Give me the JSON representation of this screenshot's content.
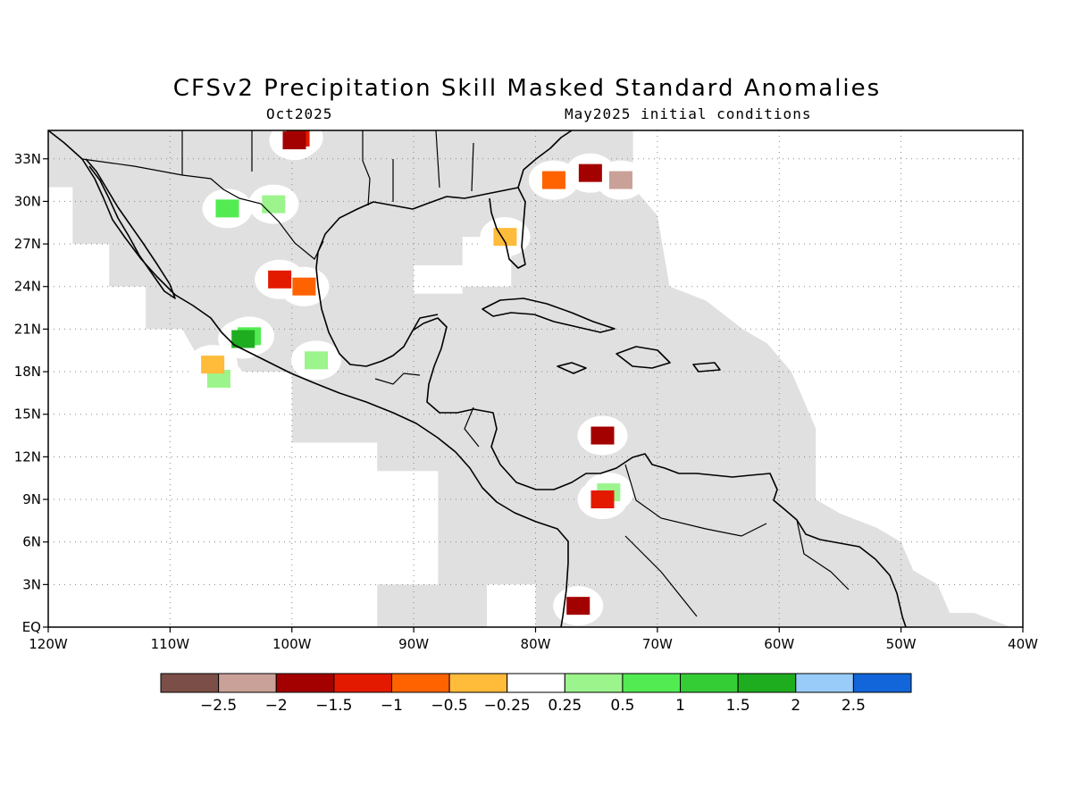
{
  "title": "CFSv2 Precipitation Skill Masked Standard Anomalies",
  "subtitle_left": "Oct2025",
  "subtitle_right": "May2025 initial conditions",
  "map": {
    "lon_range": [
      -120,
      -40
    ],
    "lat_range": [
      0,
      35
    ],
    "x_ticks": [
      "120W",
      "110W",
      "100W",
      "90W",
      "80W",
      "70W",
      "60W",
      "50W",
      "40W"
    ],
    "y_ticks": [
      "EQ",
      "3N",
      "6N",
      "9N",
      "12N",
      "15N",
      "18N",
      "21N",
      "24N",
      "27N",
      "30N",
      "33N"
    ],
    "grid": "dotted",
    "mask_color": "#e0e0e0",
    "anomaly_patches": [
      {
        "lon": -99.5,
        "lat": 34.5,
        "value": -1.0
      },
      {
        "lon": -99.8,
        "lat": 34.3,
        "value": -1.5
      },
      {
        "lon": -105.3,
        "lat": 29.5,
        "value": 1.0
      },
      {
        "lon": -101.5,
        "lat": 29.8,
        "value": 0.5
      },
      {
        "lon": -101.0,
        "lat": 24.5,
        "value": -1.0
      },
      {
        "lon": -99.0,
        "lat": 24.0,
        "value": -0.5
      },
      {
        "lon": -103.5,
        "lat": 20.5,
        "value": 1.0
      },
      {
        "lon": -104.0,
        "lat": 20.3,
        "value": 2.0
      },
      {
        "lon": -98.0,
        "lat": 18.8,
        "value": 0.5
      },
      {
        "lon": -106.0,
        "lat": 17.5,
        "value": 0.5
      },
      {
        "lon": -106.5,
        "lat": 18.5,
        "value": -0.25
      },
      {
        "lon": -75.5,
        "lat": 32.0,
        "value": -1.5
      },
      {
        "lon": -73.0,
        "lat": 31.5,
        "value": -2.0
      },
      {
        "lon": -78.5,
        "lat": 31.5,
        "value": -0.5
      },
      {
        "lon": -82.5,
        "lat": 27.5,
        "value": -0.25
      },
      {
        "lon": -74.5,
        "lat": 13.5,
        "value": -1.5
      },
      {
        "lon": -74.0,
        "lat": 9.5,
        "value": 0.5
      },
      {
        "lon": -74.5,
        "lat": 9.0,
        "value": -1.0
      },
      {
        "lon": -76.5,
        "lat": 1.5,
        "value": -1.5
      }
    ]
  },
  "colorbar": {
    "colors": [
      "#7b4f47",
      "#c9a198",
      "#a30000",
      "#e31a00",
      "#ff6300",
      "#ffbb3a",
      "#ffffff",
      "#9cf48c",
      "#52ec52",
      "#35cd35",
      "#1ead1e",
      "#99ccf8",
      "#1266d9"
    ],
    "labels": [
      "-2.5",
      "-2",
      "-1.5",
      "-1",
      "-0.5",
      "-0.25",
      "0.25",
      "0.5",
      "1",
      "1.5",
      "2",
      "2.5"
    ]
  }
}
